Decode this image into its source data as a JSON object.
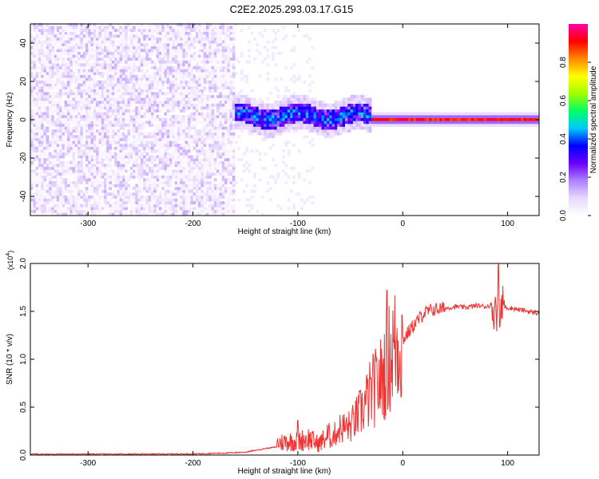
{
  "figure": {
    "title": "C2E2.2025.293.03.17.G15"
  },
  "colors": {
    "snr_line": "#ee3333",
    "colormap": [
      "#ffffff",
      "#e8d8ff",
      "#b080ff",
      "#6a00ff",
      "#0000ff",
      "#00c8ff",
      "#00ff66",
      "#a0ff00",
      "#ffff00",
      "#ff8800",
      "#ff0000",
      "#ff00aa"
    ]
  },
  "chart_data": [
    {
      "type": "heatmap",
      "title": "C2E2.2025.293.03.17.G15",
      "xlabel": "Height of straight line (km)",
      "ylabel": "Frequency (Hz)",
      "xlim": [
        -355,
        130
      ],
      "ylim": [
        -50,
        50
      ],
      "xticks": [
        -300,
        -200,
        -100,
        0,
        100
      ],
      "yticks": [
        -40,
        -20,
        0,
        20,
        40
      ],
      "grid": false,
      "colorbar": {
        "label": "Normalized spectral amplitude",
        "range": [
          0,
          1
        ],
        "ticks": [
          "0.0",
          "0.2",
          "0.4",
          "0.6",
          "0.8"
        ]
      },
      "description_regions": [
        {
          "x_from": -355,
          "x_to": -160,
          "pattern": "noise",
          "amplitude": 0.1
        },
        {
          "x_from": -160,
          "x_to": -30,
          "pattern": "signal",
          "center_hz": 2,
          "halfwidth_hz": 6,
          "amplitude": 0.3
        },
        {
          "x_from": -30,
          "x_to": 130,
          "pattern": "signal",
          "center_hz": 0,
          "halfwidth_hz": 3,
          "amplitude": 0.9
        }
      ]
    },
    {
      "type": "line",
      "title": "",
      "xlabel": "Height of straight line (km)",
      "ylabel": "SNR (10 * v/v)",
      "y_multiplier": "(x10^4)",
      "xlim": [
        -355,
        130
      ],
      "ylim": [
        0,
        20000
      ],
      "xticks": [
        -300,
        -200,
        -100,
        0,
        100
      ],
      "yticks": [
        "0.0",
        "0.5",
        "1.0",
        "1.5",
        "2.0"
      ],
      "grid": false,
      "series": [
        {
          "x": [
            -355,
            -300,
            -250,
            -200,
            -170,
            -150,
            -130,
            -110,
            -100,
            -90,
            -80,
            -70,
            -60,
            -50,
            -40,
            -30,
            -25,
            -20,
            -15,
            -10,
            -5,
            0,
            10,
            20,
            30,
            40,
            50,
            60,
            70,
            80,
            85,
            90,
            95,
            100,
            110,
            120,
            130
          ],
          "y": [
            100,
            100,
            100,
            120,
            200,
            300,
            700,
            1000,
            1000,
            1200,
            800,
            1500,
            2800,
            3000,
            4500,
            6500,
            7200,
            8000,
            9500,
            11000,
            11500,
            12000,
            13500,
            14800,
            15200,
            15300,
            15500,
            15400,
            15600,
            15500,
            15700,
            15000,
            15500,
            15400,
            15200,
            15000,
            14800
          ]
        }
      ],
      "annotations": [
        {
          "x": -15,
          "y": 17200,
          "note": "spike"
        },
        {
          "x": -100,
          "y": 3600,
          "note": "spike"
        },
        {
          "x": 91,
          "y": 19800,
          "note": "spike"
        }
      ]
    }
  ]
}
